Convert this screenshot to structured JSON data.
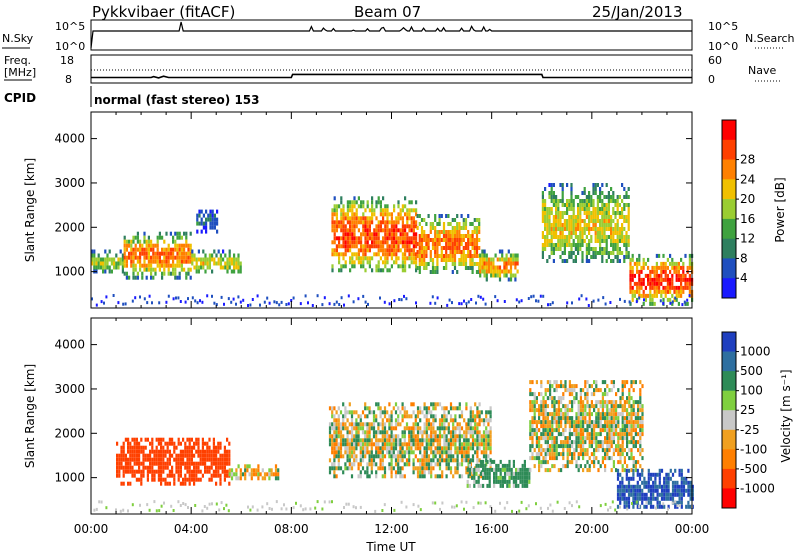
{
  "header": {
    "title": "Pykkvibaer (fitACF)",
    "beam": "Beam 07",
    "date": "25/Jan/2013"
  },
  "sky_panel": {
    "left_label": "N.Sky",
    "right_label": "N.Search",
    "left_ticks": [
      "10^5",
      "10^0"
    ],
    "right_ticks": [
      "10^5",
      "10^0"
    ]
  },
  "freq_panel": {
    "left_label_line1": "Freq.",
    "left_label_line2": "[MHz]",
    "right_label": "Nave",
    "left_ticks": [
      "18",
      "8"
    ],
    "right_ticks": [
      "60",
      "0"
    ],
    "freq_series_x_hours": [
      0,
      2.4,
      2.5,
      2.7,
      2.9,
      3.1,
      3.3,
      8.0,
      8.05,
      18.0,
      18.05,
      24
    ],
    "freq_series_y_mhz": [
      10.5,
      10.5,
      11.0,
      10.3,
      11.2,
      10.5,
      10.5,
      10.5,
      12.2,
      12.2,
      10.5,
      10.5
    ],
    "nave_dotted_y": 40
  },
  "cpid": {
    "label": "CPID",
    "value": "normal (fast stereo) 153"
  },
  "chart_data": [
    {
      "type": "heatmap",
      "name": "power",
      "ylabel": "Slant Range [km]",
      "xlabel": "",
      "x_range_hours": [
        0,
        24
      ],
      "ylim": [
        180,
        4600
      ],
      "yticks": [
        "1000",
        "2000",
        "3000",
        "4000"
      ],
      "colorbar_label": "Power [dB]",
      "colorbar_ticks": [
        "4",
        "8",
        "12",
        "16",
        "20",
        "24",
        "28"
      ],
      "colorbar_colors": [
        "#1a1aff",
        "#1f4fbf",
        "#2e7f5f",
        "#3fa23f",
        "#9acd32",
        "#f0c000",
        "#ff8000",
        "#ff4000",
        "#ff0000"
      ],
      "echo_regions": [
        {
          "t0": 0.0,
          "t1": 1.3,
          "r0": 1000,
          "r1": 1500,
          "max_db": 18
        },
        {
          "t0": 1.3,
          "t1": 4.0,
          "r0": 900,
          "r1": 1900,
          "max_db": 26
        },
        {
          "t0": 4.0,
          "t1": 6.0,
          "r0": 1000,
          "r1": 1500,
          "max_db": 20
        },
        {
          "t0": 4.2,
          "t1": 5.0,
          "r0": 1900,
          "r1": 2400,
          "max_db": 8
        },
        {
          "t0": 9.6,
          "t1": 13.0,
          "r0": 1000,
          "r1": 2700,
          "max_db": 28
        },
        {
          "t0": 13.0,
          "t1": 15.5,
          "r0": 1000,
          "r1": 2300,
          "max_db": 26
        },
        {
          "t0": 15.5,
          "t1": 17.0,
          "r0": 850,
          "r1": 1500,
          "max_db": 24
        },
        {
          "t0": 18.0,
          "t1": 21.5,
          "r0": 1200,
          "r1": 3000,
          "max_db": 20
        },
        {
          "t0": 21.5,
          "t1": 24.0,
          "r0": 300,
          "r1": 1400,
          "max_db": 30
        }
      ]
    },
    {
      "type": "heatmap",
      "name": "velocity",
      "ylabel": "Slant Range [km]",
      "xlabel": "Time UT",
      "x_range_hours": [
        0,
        24
      ],
      "ylim": [
        180,
        4600
      ],
      "yticks": [
        "1000",
        "2000",
        "3000",
        "4000"
      ],
      "xticks": [
        "00:00",
        "04:00",
        "08:00",
        "12:00",
        "16:00",
        "20:00",
        "00:00"
      ],
      "colorbar_label": "Velocity [m s⁻¹]",
      "colorbar_ticks": [
        "1000",
        "500",
        "100",
        "25",
        "-25",
        "-100",
        "-500",
        "-1000"
      ],
      "colorbar_colors": [
        "#1f3fbf",
        "#2e6fa0",
        "#2e8b57",
        "#7fcf3f",
        "#c8c8c8",
        "#f0a020",
        "#ff7f00",
        "#ff4000",
        "#ff0000"
      ],
      "echo_regions": [
        {
          "t0": 1.0,
          "t1": 5.5,
          "r0": 900,
          "r1": 1900,
          "mean_vel": -450
        },
        {
          "t0": 5.5,
          "t1": 7.5,
          "r0": 1000,
          "r1": 1300,
          "mean_vel": -60
        },
        {
          "t0": 9.5,
          "t1": 16.0,
          "r0": 1000,
          "r1": 2700,
          "mean_vel": 0
        },
        {
          "t0": 15.0,
          "t1": 17.5,
          "r0": 800,
          "r1": 1400,
          "mean_vel": 150
        },
        {
          "t0": 17.5,
          "t1": 22.0,
          "r0": 1200,
          "r1": 3200,
          "mean_vel": 0
        },
        {
          "t0": 21.0,
          "t1": 24.0,
          "r0": 300,
          "r1": 1200,
          "mean_vel": 700
        }
      ]
    }
  ]
}
